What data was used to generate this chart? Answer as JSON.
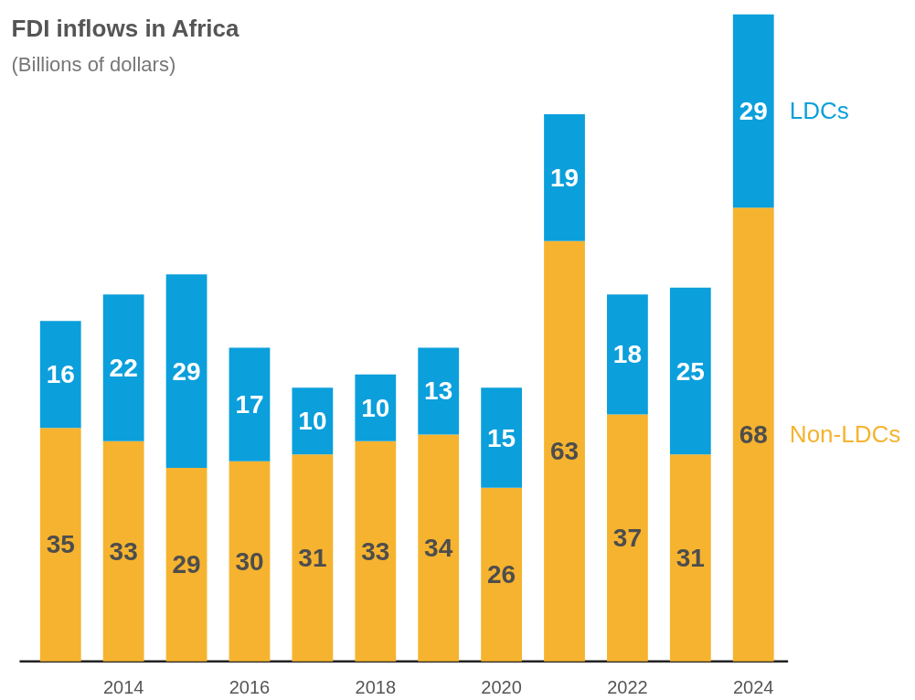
{
  "chart_data": {
    "type": "bar",
    "stacked": true,
    "title": "FDI inflows in Africa",
    "subtitle": "(Billions of dollars)",
    "categories": [
      null,
      "2014",
      null,
      "2016",
      null,
      "2018",
      null,
      "2020",
      null,
      "2022",
      null,
      "2024"
    ],
    "series": [
      {
        "name": "Non-LDCs",
        "color": "#f5b32f",
        "values": [
          35,
          33,
          29,
          30,
          31,
          33,
          34,
          26,
          63,
          37,
          31,
          68
        ]
      },
      {
        "name": "LDCs",
        "color": "#0b9fdb",
        "values": [
          16,
          22,
          29,
          17,
          10,
          10,
          13,
          15,
          19,
          18,
          25,
          29
        ]
      }
    ],
    "data_labels": true,
    "grid": false
  }
}
